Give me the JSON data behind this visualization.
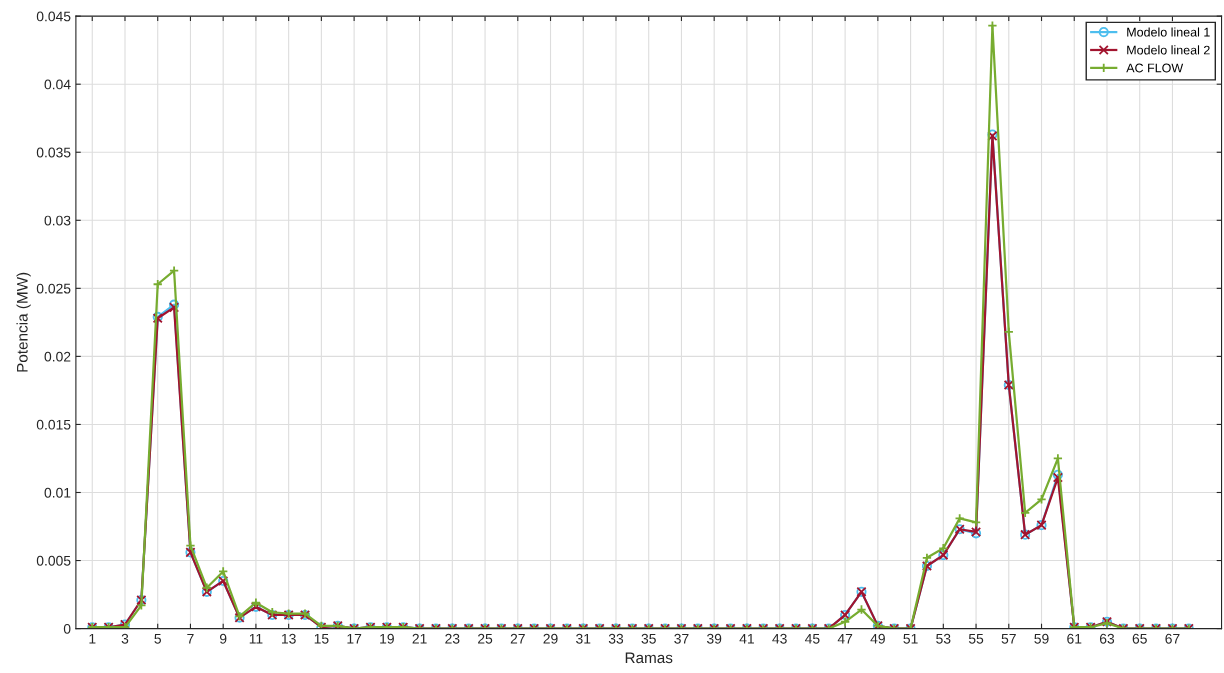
{
  "chart_data": {
    "type": "line",
    "xlabel": "Ramas",
    "ylabel": "Potencia (MW)",
    "x": [
      1,
      2,
      3,
      4,
      5,
      6,
      7,
      8,
      9,
      10,
      11,
      12,
      13,
      14,
      15,
      16,
      17,
      18,
      19,
      20,
      21,
      22,
      23,
      24,
      25,
      26,
      27,
      28,
      29,
      30,
      31,
      32,
      33,
      34,
      35,
      36,
      37,
      38,
      39,
      40,
      41,
      42,
      43,
      44,
      45,
      46,
      47,
      48,
      49,
      50,
      51,
      52,
      53,
      54,
      55,
      56,
      57,
      58,
      59,
      60,
      61,
      62,
      63,
      64,
      65,
      66,
      67,
      68
    ],
    "series": [
      {
        "name": "Modelo lineal 1",
        "color": "#4dbeee",
        "marker": "circle",
        "values": [
          0.0001,
          0.0001,
          0.0003,
          0.0021,
          0.0229,
          0.0238,
          0.0056,
          0.0027,
          0.0035,
          0.0008,
          0.0016,
          0.001,
          0.001,
          0.001,
          0.0001,
          0.0002,
          0,
          0.0001,
          0.0001,
          0.0001,
          0,
          0,
          0,
          0,
          0,
          0,
          0,
          0,
          0,
          0,
          0,
          0,
          0,
          0,
          0,
          0,
          0,
          0,
          0,
          0,
          0,
          0,
          0,
          0,
          0,
          0,
          0.001,
          0.0027,
          0.0002,
          0,
          0,
          0.0046,
          0.0054,
          0.0073,
          0.007,
          0.0363,
          0.0179,
          0.0069,
          0.0076,
          0.0113,
          0.0001,
          0.0001,
          0.0005,
          0,
          0,
          0,
          0,
          0
        ]
      },
      {
        "name": "Modelo lineal 2",
        "color": "#a2142f",
        "marker": "cross",
        "values": [
          0.0001,
          0.0001,
          0.0003,
          0.0021,
          0.0228,
          0.0236,
          0.0056,
          0.0027,
          0.0035,
          0.0008,
          0.0016,
          0.001,
          0.001,
          0.001,
          0.0001,
          0.0002,
          0,
          0.0001,
          0.0001,
          0.0001,
          0,
          0,
          0,
          0,
          0,
          0,
          0,
          0,
          0,
          0,
          0,
          0,
          0,
          0,
          0,
          0,
          0,
          0,
          0,
          0,
          0,
          0,
          0,
          0,
          0,
          0,
          0.001,
          0.0027,
          0.0002,
          0,
          0,
          0.0046,
          0.0054,
          0.0073,
          0.0071,
          0.0362,
          0.0179,
          0.0069,
          0.0076,
          0.0111,
          0.0001,
          0.0001,
          0.0005,
          0,
          0,
          0,
          0,
          0
        ]
      },
      {
        "name": "AC FLOW",
        "color": "#77ac30",
        "marker": "plus",
        "values": [
          0.0001,
          0.0001,
          0.0001,
          0.0017,
          0.0253,
          0.0263,
          0.0061,
          0.003,
          0.0042,
          0.0009,
          0.0019,
          0.0012,
          0.0011,
          0.0011,
          0.0002,
          0.0002,
          0,
          0.0001,
          0.0001,
          0.0001,
          0,
          0,
          0,
          0,
          0,
          0,
          0,
          0,
          0,
          0,
          0,
          0,
          0,
          0,
          0,
          0,
          0,
          0,
          0,
          0,
          0,
          0,
          0,
          0,
          0,
          0,
          0.0005,
          0.0014,
          0.0002,
          0,
          0,
          0.0052,
          0.0059,
          0.0081,
          0.0078,
          0.0443,
          0.0218,
          0.0085,
          0.0095,
          0.0125,
          0.0001,
          0.0001,
          0.0004,
          0,
          0,
          0,
          0,
          0
        ]
      }
    ],
    "xlim": [
      0,
      70
    ],
    "xticks": [
      1,
      3,
      5,
      7,
      9,
      11,
      13,
      15,
      17,
      19,
      21,
      23,
      25,
      27,
      29,
      31,
      33,
      35,
      37,
      39,
      41,
      43,
      45,
      47,
      49,
      51,
      53,
      55,
      57,
      59,
      61,
      63,
      65,
      67
    ],
    "ylim": [
      0,
      0.045
    ],
    "yticks": [
      0,
      0.005,
      0.01,
      0.015,
      0.02,
      0.025,
      0.03,
      0.035,
      0.04,
      0.045
    ],
    "grid": true,
    "legend": "top right"
  }
}
